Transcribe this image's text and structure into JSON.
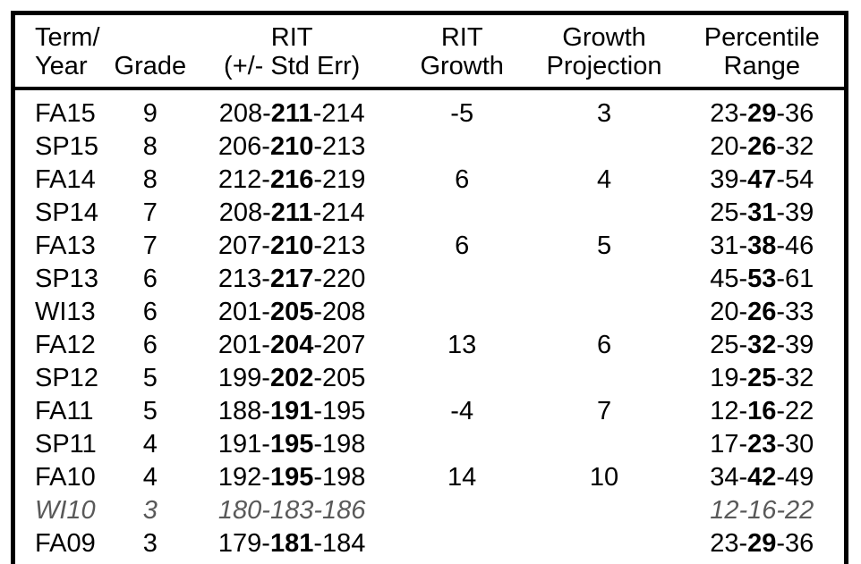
{
  "colors": {
    "background": "#ffffff",
    "border": "#000000",
    "text": "#000000",
    "muted_text": "#595959"
  },
  "table": {
    "headers": [
      {
        "id": "term-year",
        "lines": [
          "Term/",
          "Year"
        ],
        "align": "left"
      },
      {
        "id": "grade",
        "lines": [
          "Grade"
        ]
      },
      {
        "id": "rit",
        "lines": [
          "RIT",
          "(+/- Std Err)"
        ]
      },
      {
        "id": "rit-growth",
        "lines": [
          "RIT",
          "Growth"
        ]
      },
      {
        "id": "growth-projection",
        "lines": [
          "Growth",
          "Projection"
        ]
      },
      {
        "id": "percentile-range",
        "lines": [
          "Percentile",
          "Range"
        ]
      }
    ],
    "rows": [
      {
        "term": "FA15",
        "grade": "9",
        "rit": [
          "208",
          "211",
          "214"
        ],
        "growth": "-5",
        "projection": "3",
        "percentile": [
          "23",
          "29",
          "36"
        ],
        "emphasis": "bold-mid",
        "muted": false
      },
      {
        "term": "SP15",
        "grade": "8",
        "rit": [
          "206",
          "210",
          "213"
        ],
        "growth": "",
        "projection": "",
        "percentile": [
          "20",
          "26",
          "32"
        ],
        "emphasis": "bold-mid",
        "muted": false
      },
      {
        "term": "FA14",
        "grade": "8",
        "rit": [
          "212",
          "216",
          "219"
        ],
        "growth": "6",
        "projection": "4",
        "percentile": [
          "39",
          "47",
          "54"
        ],
        "emphasis": "bold-mid",
        "muted": false
      },
      {
        "term": "SP14",
        "grade": "7",
        "rit": [
          "208",
          "211",
          "214"
        ],
        "growth": "",
        "projection": "",
        "percentile": [
          "25",
          "31",
          "39"
        ],
        "emphasis": "bold-mid",
        "muted": false
      },
      {
        "term": "FA13",
        "grade": "7",
        "rit": [
          "207",
          "210",
          "213"
        ],
        "growth": "6",
        "projection": "5",
        "percentile": [
          "31",
          "38",
          "46"
        ],
        "emphasis": "bold-mid",
        "muted": false
      },
      {
        "term": "SP13",
        "grade": "6",
        "rit": [
          "213",
          "217",
          "220"
        ],
        "growth": "",
        "projection": "",
        "percentile": [
          "45",
          "53",
          "61"
        ],
        "emphasis": "bold-mid",
        "muted": false
      },
      {
        "term": "WI13",
        "grade": "6",
        "rit": [
          "201",
          "205",
          "208"
        ],
        "growth": "",
        "projection": "",
        "percentile": [
          "20",
          "26",
          "33"
        ],
        "emphasis": "bold-mid",
        "muted": false
      },
      {
        "term": "FA12",
        "grade": "6",
        "rit": [
          "201",
          "204",
          "207"
        ],
        "growth": "13",
        "projection": "6",
        "percentile": [
          "25",
          "32",
          "39"
        ],
        "emphasis": "bold-mid",
        "muted": false
      },
      {
        "term": "SP12",
        "grade": "5",
        "rit": [
          "199",
          "202",
          "205"
        ],
        "growth": "",
        "projection": "",
        "percentile": [
          "19",
          "25",
          "32"
        ],
        "emphasis": "bold-mid",
        "muted": false
      },
      {
        "term": "FA11",
        "grade": "5",
        "rit": [
          "188",
          "191",
          "195"
        ],
        "growth": "-4",
        "projection": "7",
        "percentile": [
          "12",
          "16",
          "22"
        ],
        "emphasis": "bold-mid",
        "muted": false
      },
      {
        "term": "SP11",
        "grade": "4",
        "rit": [
          "191",
          "195",
          "198"
        ],
        "growth": "",
        "projection": "",
        "percentile": [
          "17",
          "23",
          "30"
        ],
        "emphasis": "bold-mid",
        "muted": false
      },
      {
        "term": "FA10",
        "grade": "4",
        "rit": [
          "192",
          "195",
          "198"
        ],
        "growth": "14",
        "projection": "10",
        "percentile": [
          "34",
          "42",
          "49"
        ],
        "emphasis": "bold-mid",
        "muted": false
      },
      {
        "term": "WI10",
        "grade": "3",
        "rit": [
          "180",
          "183",
          "186"
        ],
        "growth": "",
        "projection": "",
        "percentile": [
          "12",
          "16",
          "22"
        ],
        "emphasis": "none",
        "muted": true
      },
      {
        "term": "FA09",
        "grade": "3",
        "rit": [
          "179",
          "181",
          "184"
        ],
        "growth": "",
        "projection": "",
        "percentile": [
          "23",
          "29",
          "36"
        ],
        "emphasis": "bold-mid",
        "muted": false
      }
    ]
  }
}
